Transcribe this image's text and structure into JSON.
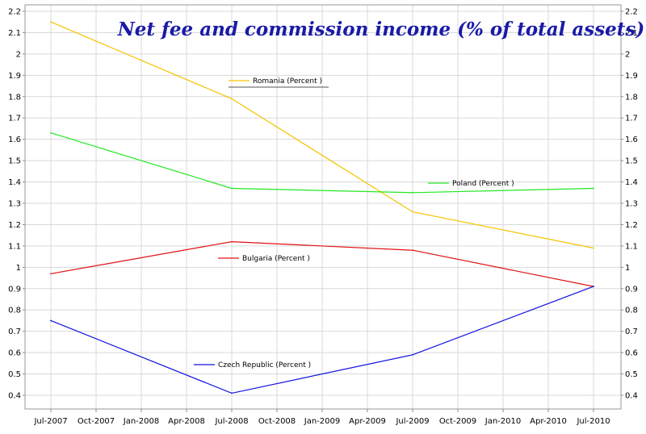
{
  "chart_data": {
    "type": "line",
    "title": "Net fee and commission income (% of total assets)",
    "xlabel": "",
    "ylabel": "",
    "x_ticks": [
      "Jul-2007",
      "Oct-2007",
      "Jan-2008",
      "Apr-2008",
      "Jul-2008",
      "Oct-2008",
      "Jan-2009",
      "Apr-2009",
      "Jul-2009",
      "Oct-2009",
      "Jan-2010",
      "Apr-2010",
      "Jul-2010"
    ],
    "categories": [
      "Jul-2007",
      "Jul-2008",
      "Jul-2009",
      "Jul-2010"
    ],
    "y_ticks": [
      "0.4",
      "0.5",
      "0.6",
      "0.7",
      "0.8",
      "0.9",
      "1",
      "1.1",
      "1.2",
      "1.3",
      "1.4",
      "1.5",
      "1.6",
      "1.7",
      "1.8",
      "1.9",
      "2",
      "2.1",
      "2.2"
    ],
    "ylim": [
      0.35,
      2.23
    ],
    "grid": true,
    "series": [
      {
        "name": "Romania (Percent )",
        "color": "#f5c400",
        "values": [
          2.15,
          1.79,
          1.26,
          1.09
        ]
      },
      {
        "name": "Poland (Percent )",
        "color": "#22e822",
        "values": [
          1.63,
          1.37,
          1.35,
          1.37
        ]
      },
      {
        "name": "Bulgaria (Percent )",
        "color": "#e01010",
        "values": [
          0.97,
          1.12,
          1.08,
          0.91
        ]
      },
      {
        "name": "Czech Republic (Percent )",
        "color": "#1010e0",
        "values": [
          0.75,
          0.41,
          0.59,
          0.91
        ]
      }
    ]
  }
}
